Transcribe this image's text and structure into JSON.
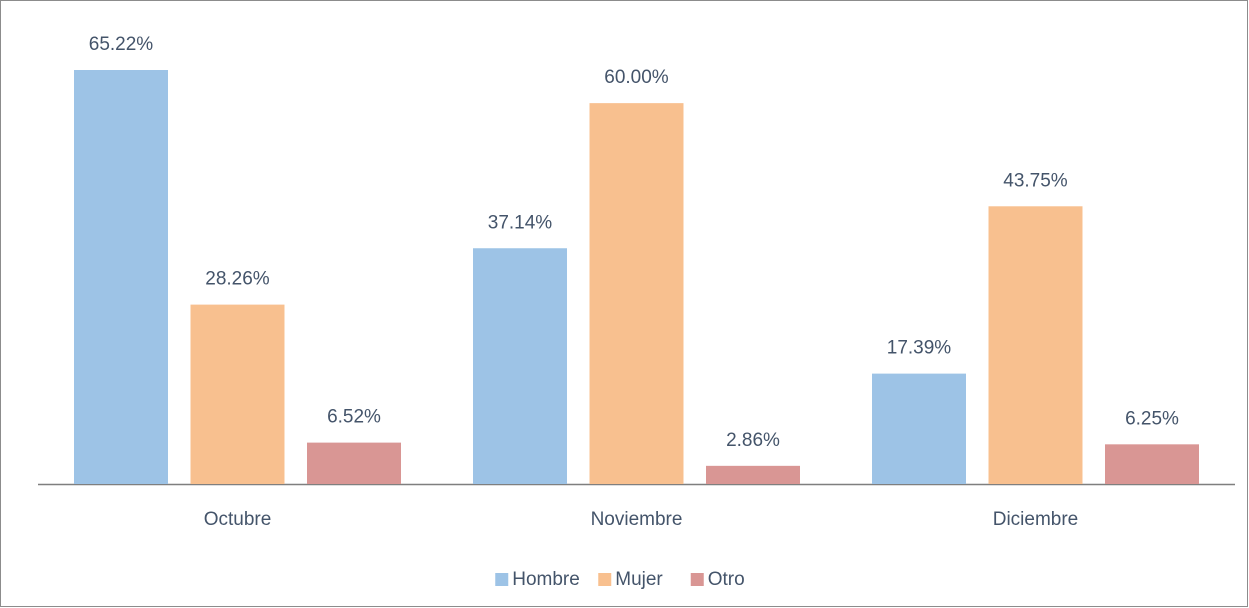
{
  "chart_data": {
    "type": "bar",
    "categories": [
      "Octubre",
      "Noviembre",
      "Diciembre"
    ],
    "series": [
      {
        "name": "Hombre",
        "color": "#9dc3e6",
        "values": [
          65.22,
          37.14,
          17.39
        ],
        "value_labels": [
          "65.22%",
          "37.14%",
          "17.39%"
        ]
      },
      {
        "name": "Mujer",
        "color": "#f8c08f",
        "values": [
          28.26,
          60.0,
          43.75
        ],
        "value_labels": [
          "28.26%",
          "60.00%",
          "43.75%"
        ]
      },
      {
        "name": "Otro",
        "color": "#d99694",
        "values": [
          6.52,
          2.86,
          6.25
        ],
        "value_labels": [
          "6.52%",
          "2.86%",
          "6.25%"
        ]
      }
    ],
    "legend": "bottom"
  }
}
